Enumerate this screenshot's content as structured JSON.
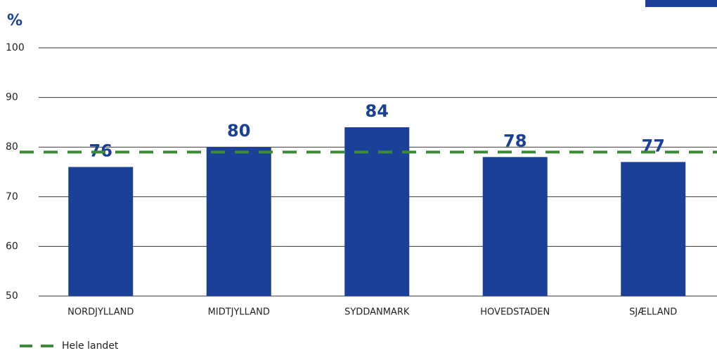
{
  "chart_data": {
    "type": "bar",
    "y_unit": "%",
    "categories": [
      "NORDJYLLAND",
      "MIDTJYLLAND",
      "SYDDANMARK",
      "HOVEDSTADEN",
      "SJÆLLAND"
    ],
    "values": [
      76,
      80,
      84,
      78,
      77
    ],
    "color": "#1a4097",
    "ylim": [
      50,
      100
    ],
    "yticks": [
      50,
      60,
      70,
      80,
      90,
      100
    ],
    "grid": true,
    "reference_line": {
      "name": "Hele landet",
      "value": 79,
      "color": "#3d8b37"
    }
  }
}
